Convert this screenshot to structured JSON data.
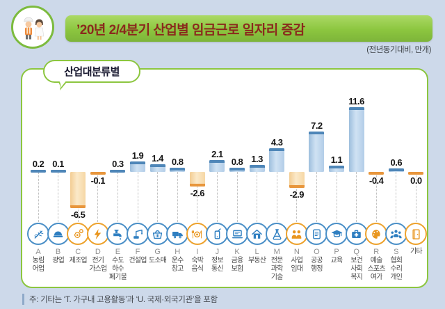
{
  "header": {
    "title": "’20년 2/4분기 산업별 임금근로 일자리 증감",
    "unit_note": "(전년동기대비, 만개)",
    "logo_icon": "workers-icon"
  },
  "panel": {
    "bubble_label": "산업대분류별"
  },
  "chart_data": {
    "type": "bar",
    "title": "’20년 2/4분기 산업별 임금근로 일자리 증감",
    "unit": "만개, 전년동기대비",
    "categories": [
      "A 농림어업",
      "B 광업",
      "C 제조업",
      "D 전기가스업",
      "E 수도하수폐기물",
      "F 건설업",
      "G 도소매",
      "H 운수창고",
      "I 숙박음식",
      "J 정보통신",
      "K 금융보험",
      "L 부동산",
      "M 전문과학기술",
      "N 사업임대",
      "O 공공행정",
      "P 교육",
      "Q 보건사회복지",
      "R 예술스포츠여가",
      "S 협회수리개인",
      "기타"
    ],
    "values": [
      0.2,
      0.1,
      -6.5,
      -0.1,
      0.3,
      1.9,
      1.4,
      0.8,
      -2.6,
      2.1,
      0.8,
      1.3,
      4.3,
      -2.9,
      7.2,
      1.1,
      11.6,
      -0.4,
      0.6,
      0.0
    ],
    "ylim": [
      -8,
      13
    ],
    "grid": "dashed-vertical-below-baseline",
    "legend": "none",
    "positive_color": "#b9d4ec",
    "positive_cap_color": "#4e86b8",
    "negative_color": "#f8dcab",
    "negative_cap_color": "#e8963c"
  },
  "categories": [
    {
      "letter": "A",
      "label": "농림\n어업",
      "display": "0.2",
      "value": 0.2,
      "trend": "up",
      "icon": "wheat-icon"
    },
    {
      "letter": "B",
      "label": "광업",
      "display": "0.1",
      "value": 0.1,
      "trend": "up",
      "icon": "hardhat-icon"
    },
    {
      "letter": "C",
      "label": "제조업",
      "display": "-6.5",
      "value": -6.5,
      "trend": "down",
      "icon": "gear-icon"
    },
    {
      "letter": "D",
      "label": "전기\n가스업",
      "display": "-0.1",
      "value": -0.1,
      "trend": "down",
      "icon": "lightning-icon"
    },
    {
      "letter": "E",
      "label": "수도\n하수\n폐기물",
      "display": "0.3",
      "value": 0.3,
      "trend": "up",
      "icon": "faucet-icon"
    },
    {
      "letter": "F",
      "label": "건설업",
      "display": "1.9",
      "value": 1.9,
      "trend": "up",
      "icon": "crane-icon"
    },
    {
      "letter": "G",
      "label": "도소매",
      "display": "1.4",
      "value": 1.4,
      "trend": "up",
      "icon": "basket-icon"
    },
    {
      "letter": "H",
      "label": "운수\n창고",
      "display": "0.8",
      "value": 0.8,
      "trend": "up",
      "icon": "truck-icon"
    },
    {
      "letter": "I",
      "label": "숙박\n음식",
      "display": "-2.6",
      "value": -2.6,
      "trend": "down",
      "icon": "dining-icon"
    },
    {
      "letter": "J",
      "label": "정보\n통신",
      "display": "2.1",
      "value": 2.1,
      "trend": "up",
      "icon": "mobile-phone-icon"
    },
    {
      "letter": "K",
      "label": "금융\n보험",
      "display": "0.8",
      "value": 0.8,
      "trend": "up",
      "icon": "banking-icon"
    },
    {
      "letter": "L",
      "label": "부동산",
      "display": "1.3",
      "value": 1.3,
      "trend": "up",
      "icon": "house-icon"
    },
    {
      "letter": "M",
      "label": "전문\n과학\n기술",
      "display": "4.3",
      "value": 4.3,
      "trend": "up",
      "icon": "science-icon"
    },
    {
      "letter": "N",
      "label": "사업\n임대",
      "display": "-2.9",
      "value": -2.9,
      "trend": "down",
      "icon": "partnership-icon"
    },
    {
      "letter": "O",
      "label": "공공\n행정",
      "display": "7.2",
      "value": 7.2,
      "trend": "up",
      "icon": "scroll-icon"
    },
    {
      "letter": "P",
      "label": "교육",
      "display": "1.1",
      "value": 1.1,
      "trend": "up",
      "icon": "graduation-cap-icon"
    },
    {
      "letter": "Q",
      "label": "보건\n사회\n복지",
      "display": "11.6",
      "value": 11.6,
      "trend": "up",
      "icon": "first-aid-icon"
    },
    {
      "letter": "R",
      "label": "예술\n스포츠\n여가",
      "display": "-0.4",
      "value": -0.4,
      "trend": "down",
      "icon": "palette-icon"
    },
    {
      "letter": "S",
      "label": "협회\n수리\n개인",
      "display": "0.6",
      "value": 0.6,
      "trend": "up",
      "icon": "people-group-icon"
    },
    {
      "letter": "",
      "label": "기타",
      "display": "0.0",
      "value": 0.0,
      "trend": "down",
      "icon": "door-icon"
    }
  ],
  "colors": {
    "background": "#cdd9ea",
    "banner_green": "#8cc63f",
    "title_text": "#8a2a1d",
    "blue_icon": "#2f7fc1",
    "orange_icon": "#e9961f"
  },
  "footnote": "주: 기타는 ‘T. 가구내 고용활동’과 ‘U. 국제·외국기관’을 포함"
}
